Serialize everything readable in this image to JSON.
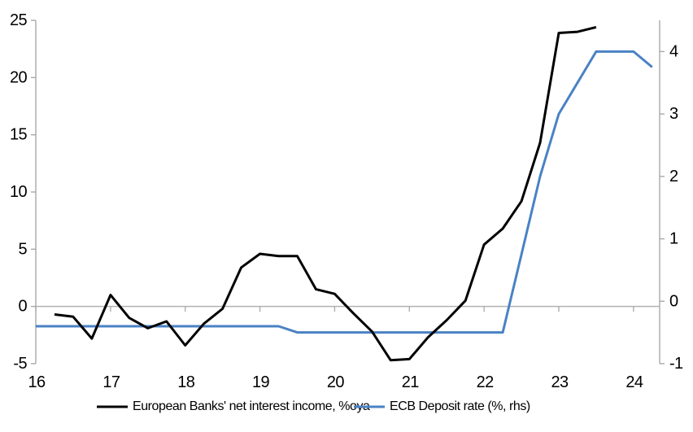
{
  "chart_data": {
    "type": "line",
    "title": "",
    "xlabel": "",
    "ylabel_left": "",
    "ylabel_right": "",
    "grid": "none",
    "legend_position": "bottom",
    "x_axis": {
      "range": [
        16,
        24.35
      ],
      "ticks": [
        16,
        17,
        18,
        19,
        20,
        21,
        22,
        23,
        24
      ]
    },
    "left_axis": {
      "range": [
        -5,
        25
      ],
      "ticks": [
        -5,
        0,
        5,
        10,
        15,
        20,
        25
      ]
    },
    "right_axis": {
      "range": [
        -1,
        4.5
      ],
      "ticks": [
        -1,
        0,
        1,
        2,
        3,
        4
      ]
    },
    "series": [
      {
        "name": "European Banks' net interest income, %oya",
        "axis": "left",
        "color": "#000000",
        "points": [
          [
            16.25,
            -0.7
          ],
          [
            16.5,
            -0.9
          ],
          [
            16.75,
            -2.8
          ],
          [
            17.0,
            1.0
          ],
          [
            17.25,
            -1.0
          ],
          [
            17.5,
            -1.9
          ],
          [
            17.75,
            -1.3
          ],
          [
            18.0,
            -3.4
          ],
          [
            18.25,
            -1.5
          ],
          [
            18.5,
            -0.2
          ],
          [
            18.75,
            3.4
          ],
          [
            19.0,
            4.6
          ],
          [
            19.25,
            4.4
          ],
          [
            19.5,
            4.4
          ],
          [
            19.75,
            1.5
          ],
          [
            20.0,
            1.1
          ],
          [
            20.25,
            -0.6
          ],
          [
            20.5,
            -2.2
          ],
          [
            20.75,
            -4.7
          ],
          [
            21.0,
            -4.6
          ],
          [
            21.25,
            -2.7
          ],
          [
            21.5,
            -1.2
          ],
          [
            21.75,
            0.5
          ],
          [
            22.0,
            5.4
          ],
          [
            22.25,
            6.8
          ],
          [
            22.5,
            9.2
          ],
          [
            22.75,
            14.3
          ],
          [
            23.0,
            23.9
          ],
          [
            23.25,
            24.0
          ],
          [
            23.5,
            24.4
          ]
        ]
      },
      {
        "name": "ECB Deposit rate (%, rhs)",
        "axis": "right",
        "color": "#4a82c4",
        "points": [
          [
            16.0,
            -0.4
          ],
          [
            16.25,
            -0.4
          ],
          [
            16.5,
            -0.4
          ],
          [
            16.75,
            -0.4
          ],
          [
            17.0,
            -0.4
          ],
          [
            17.25,
            -0.4
          ],
          [
            17.5,
            -0.4
          ],
          [
            17.75,
            -0.4
          ],
          [
            18.0,
            -0.4
          ],
          [
            18.25,
            -0.4
          ],
          [
            18.5,
            -0.4
          ],
          [
            18.75,
            -0.4
          ],
          [
            19.0,
            -0.4
          ],
          [
            19.25,
            -0.4
          ],
          [
            19.5,
            -0.5
          ],
          [
            19.75,
            -0.5
          ],
          [
            20.0,
            -0.5
          ],
          [
            20.25,
            -0.5
          ],
          [
            20.5,
            -0.5
          ],
          [
            20.75,
            -0.5
          ],
          [
            21.0,
            -0.5
          ],
          [
            21.25,
            -0.5
          ],
          [
            21.5,
            -0.5
          ],
          [
            21.75,
            -0.5
          ],
          [
            22.0,
            -0.5
          ],
          [
            22.25,
            -0.5
          ],
          [
            22.5,
            0.75
          ],
          [
            22.75,
            2.0
          ],
          [
            23.0,
            3.0
          ],
          [
            23.25,
            3.5
          ],
          [
            23.5,
            4.0
          ],
          [
            23.75,
            4.0
          ],
          [
            24.0,
            4.0
          ],
          [
            24.25,
            3.75
          ]
        ]
      }
    ]
  },
  "colors": {
    "axis_line": "#a8a8a8",
    "zero_axis_line": "#b2b2b2",
    "label_text": "#000000",
    "background": "#ffffff"
  }
}
